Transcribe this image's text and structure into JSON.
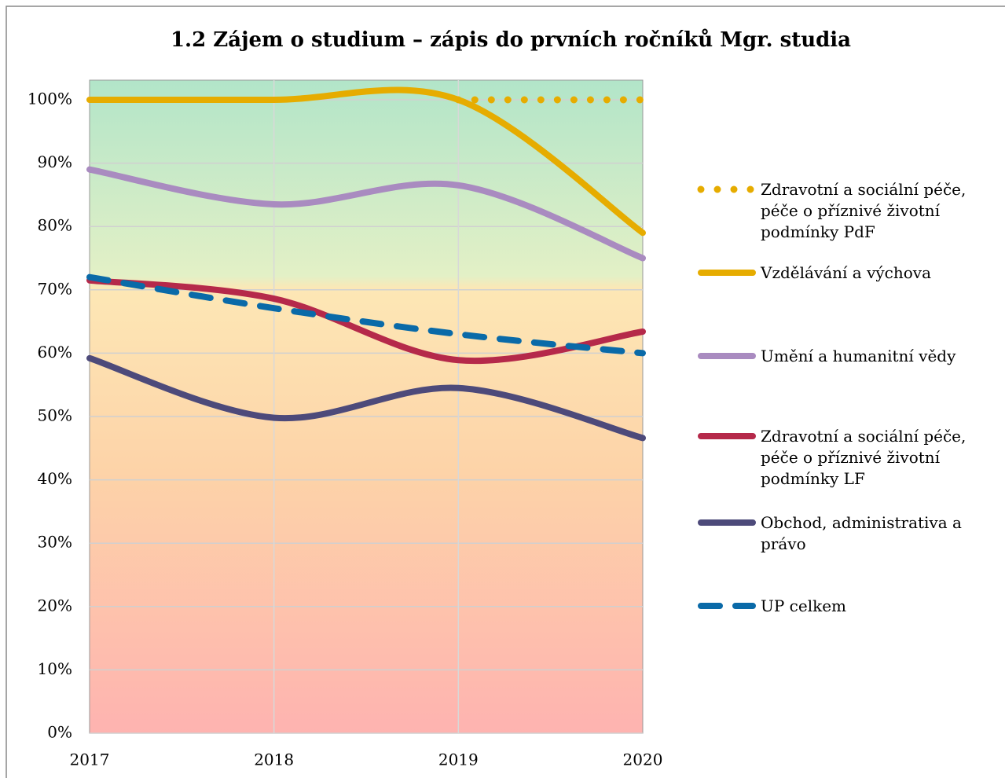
{
  "chart_data": {
    "type": "line",
    "title": "1.2 Zájem o studium – zápis do prvních ročníků Mgr. studia",
    "categories": [
      "2017",
      "2018",
      "2019",
      "2020"
    ],
    "series": [
      {
        "name": "Zdravotní a sociální péče, péče o příznivé životní podmínky PdF",
        "color": "#e6ac00",
        "style": "dotted",
        "values": [
          null,
          null,
          100,
          100
        ]
      },
      {
        "name": "Vzdělávání a výchova",
        "color": "#e6ac00",
        "style": "solid",
        "values": [
          100,
          100,
          100,
          79
        ]
      },
      {
        "name": "Umění a humanitní vědy",
        "color": "#a98bc0",
        "style": "solid",
        "values": [
          89,
          83.5,
          86.5,
          75
        ]
      },
      {
        "name": "Zdravotní a sociální péče, péče o příznivé životní podmínky LF",
        "color": "#b5294a",
        "style": "solid",
        "values": [
          71.5,
          68.6,
          58.9,
          63.4
        ]
      },
      {
        "name": "Obchod, administrativa a právo",
        "color": "#4d4a7a",
        "style": "solid",
        "values": [
          59.2,
          49.8,
          54.5,
          46.6
        ]
      },
      {
        "name": "UP celkem",
        "color": "#0a6aa8",
        "style": "dashed",
        "values": [
          72,
          67.1,
          63,
          60
        ]
      }
    ],
    "ylim": [
      0,
      100
    ],
    "yticks": [
      {
        "value": 0,
        "label": "0%"
      },
      {
        "value": 10,
        "label": "10%"
      },
      {
        "value": 20,
        "label": "20%"
      },
      {
        "value": 30,
        "label": "30%"
      },
      {
        "value": 40,
        "label": "40%"
      },
      {
        "value": 50,
        "label": "50%"
      },
      {
        "value": 60,
        "label": "60%"
      },
      {
        "value": 70,
        "label": "70%"
      },
      {
        "value": 80,
        "label": "80%"
      },
      {
        "value": 90,
        "label": "90%"
      },
      {
        "value": 100,
        "label": "100%"
      }
    ],
    "grid": true,
    "legend": "right"
  }
}
